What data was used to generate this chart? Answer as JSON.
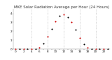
{
  "title": "MKE Solar Radiation Average per Hour (24 Hours)",
  "hours": [
    0,
    1,
    2,
    3,
    4,
    5,
    6,
    7,
    8,
    9,
    10,
    11,
    12,
    13,
    14,
    15,
    16,
    17,
    18,
    19,
    20,
    21,
    22,
    23
  ],
  "solar": [
    0,
    0,
    0,
    0,
    0,
    2,
    18,
    65,
    145,
    230,
    310,
    370,
    385,
    355,
    300,
    215,
    125,
    55,
    15,
    2,
    0,
    0,
    0,
    0
  ],
  "dot_colors": [
    "#cc0000",
    "#000000",
    "#cc0000",
    "#000000",
    "#cc0000",
    "#000000",
    "#cc0000",
    "#000000",
    "#cc0000",
    "#000000",
    "#cc0000",
    "#000000",
    "#cc0000",
    "#000000",
    "#cc0000",
    "#000000",
    "#cc0000",
    "#000000",
    "#cc0000",
    "#000000",
    "#cc0000",
    "#000000",
    "#cc0000",
    "#000000"
  ],
  "grid_color": "#aaaaaa",
  "grid_positions": [
    4,
    8,
    12,
    16,
    20
  ],
  "background_color": "#ffffff",
  "ylim": [
    0,
    450
  ],
  "xlim": [
    -0.5,
    23.5
  ],
  "yticks": [
    0,
    100,
    200,
    300,
    400
  ],
  "ytick_labels": [
    "0",
    "1",
    "2",
    "3",
    "4"
  ],
  "xtick_labels": [
    "0",
    "",
    "2",
    "",
    "4",
    "",
    "6",
    "",
    "8",
    "",
    "10",
    "",
    "12",
    "",
    "14",
    "",
    "16",
    "",
    "18",
    "",
    "20",
    "",
    "22",
    ""
  ],
  "title_fontsize": 4.0,
  "tick_fontsize": 3.0,
  "markersize": 1.5
}
